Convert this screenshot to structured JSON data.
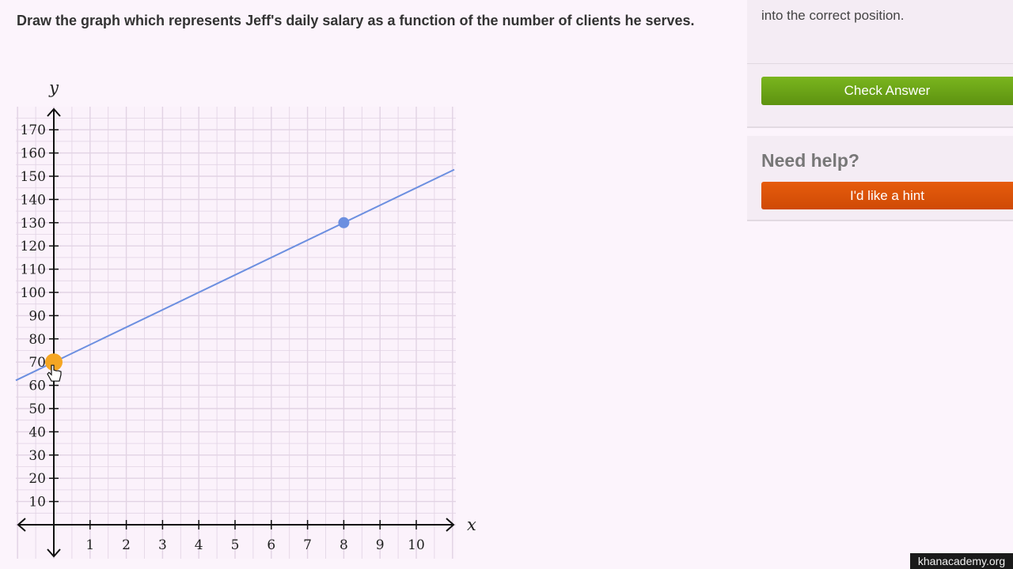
{
  "question": {
    "text": "Draw the graph which represents Jeff's daily salary as a function of the number of clients he serves."
  },
  "side_panel": {
    "instruction_fragment": "into the correct position.",
    "check_button_label": "Check Answer",
    "help_heading": "Need help?",
    "hint_button_label": "I'd like a hint"
  },
  "watermark": "khanacademy.org",
  "colors": {
    "background": "#fcf4fc",
    "check_button": "#6ca41a",
    "hint_button": "#de5409",
    "line": "#6c8fe0",
    "intercept_point": "#f5a623",
    "slope_point": "#6c8fe0",
    "grid": "#e2d3e4"
  },
  "chart_data": {
    "type": "line",
    "xlabel": "x",
    "ylabel": "y",
    "x_ticks": [
      1,
      2,
      3,
      4,
      5,
      6,
      7,
      8,
      9,
      10
    ],
    "y_ticks": [
      10,
      20,
      30,
      40,
      50,
      60,
      70,
      80,
      90,
      100,
      110,
      120,
      130,
      140,
      150,
      160,
      170
    ],
    "xlim": [
      -1,
      11
    ],
    "ylim": [
      0,
      175
    ],
    "grid": true,
    "line": {
      "points": [
        {
          "x": 0,
          "y": 70
        },
        {
          "x": 8,
          "y": 130
        }
      ],
      "slope": 7.5,
      "intercept": 70
    },
    "interactive_points": [
      {
        "name": "intercept-point",
        "x": 0,
        "y": 70,
        "color": "#f5a623"
      },
      {
        "name": "slope-point",
        "x": 8,
        "y": 130,
        "color": "#6c8fe0"
      }
    ]
  }
}
